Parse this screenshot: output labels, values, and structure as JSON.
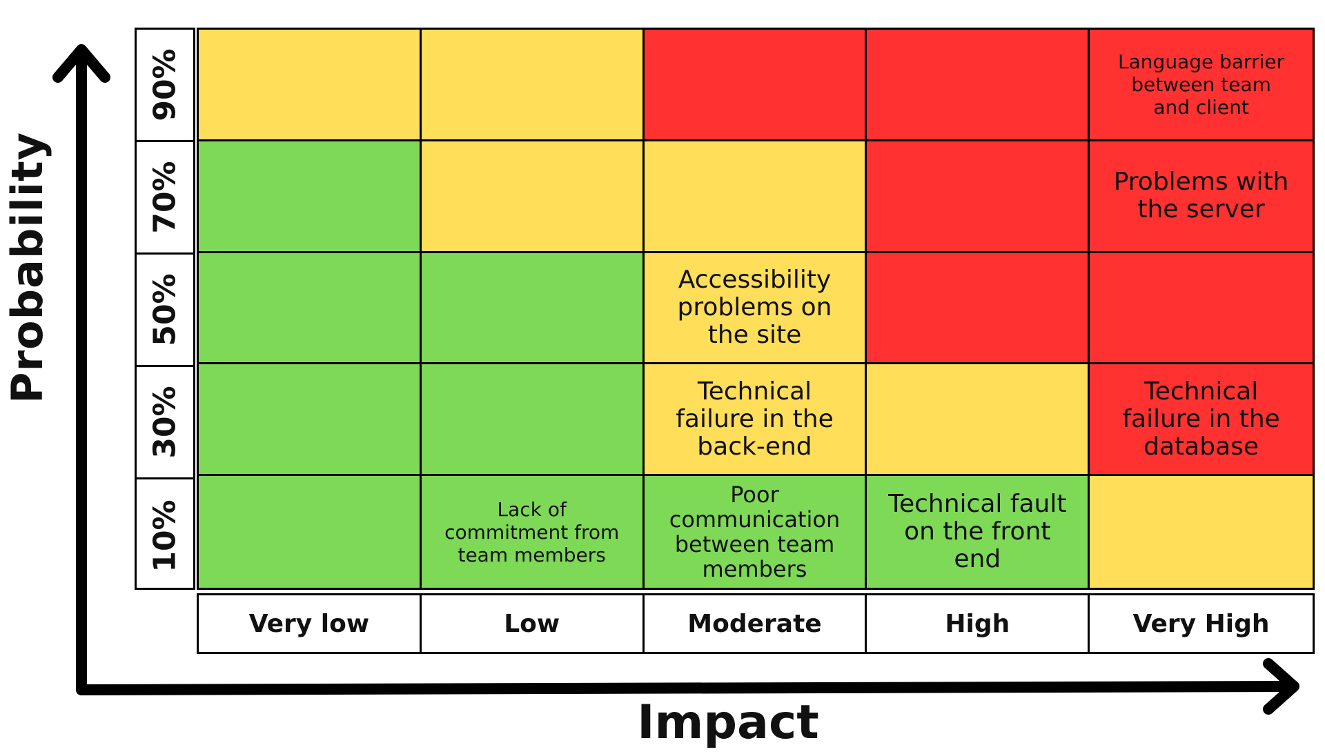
{
  "axis": {
    "y_label": "Probability",
    "x_label": "Impact"
  },
  "probability_levels": [
    "90%",
    "70%",
    "50%",
    "30%",
    "10%"
  ],
  "impact_levels": [
    "Very low",
    "Low",
    "Moderate",
    "High",
    "Very High"
  ],
  "colors": {
    "green": "#7ED957",
    "yellow": "#FFDE59",
    "red": "#FF3131"
  },
  "matrix": [
    [
      {
        "color": "yellow",
        "text": ""
      },
      {
        "color": "yellow",
        "text": ""
      },
      {
        "color": "red",
        "text": ""
      },
      {
        "color": "red",
        "text": ""
      },
      {
        "color": "red",
        "text": "Language barrier\nbetween team\nand client",
        "size": "sm"
      }
    ],
    [
      {
        "color": "green",
        "text": ""
      },
      {
        "color": "yellow",
        "text": ""
      },
      {
        "color": "yellow",
        "text": ""
      },
      {
        "color": "red",
        "text": ""
      },
      {
        "color": "red",
        "text": "Problems with\nthe server",
        "size": "lg"
      }
    ],
    [
      {
        "color": "green",
        "text": ""
      },
      {
        "color": "green",
        "text": ""
      },
      {
        "color": "yellow",
        "text": "Accessibility\nproblems on\nthe site",
        "size": "lg"
      },
      {
        "color": "red",
        "text": ""
      },
      {
        "color": "red",
        "text": ""
      }
    ],
    [
      {
        "color": "green",
        "text": ""
      },
      {
        "color": "green",
        "text": ""
      },
      {
        "color": "yellow",
        "text": "Technical\nfailure in the\nback-end",
        "size": "lg"
      },
      {
        "color": "yellow",
        "text": ""
      },
      {
        "color": "red",
        "text": "Technical\nfailure in the\ndatabase",
        "size": "lg"
      }
    ],
    [
      {
        "color": "green",
        "text": ""
      },
      {
        "color": "green",
        "text": "Lack of\ncommitment from\nteam members",
        "size": "sm"
      },
      {
        "color": "green",
        "text": "Poor\ncommunication\nbetween team\nmembers",
        "size": "md"
      },
      {
        "color": "green",
        "text": "Technical fault\non the front\nend",
        "size": "lg"
      },
      {
        "color": "yellow",
        "text": ""
      }
    ]
  ]
}
